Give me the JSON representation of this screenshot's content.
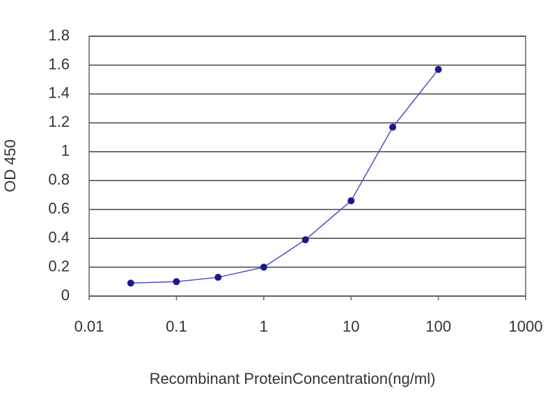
{
  "chart_data": {
    "type": "line",
    "x_label": "Recombinant ProteinConcentration(ng/ml)",
    "y_label": "OD 450",
    "x": [
      0.03,
      0.1,
      0.3,
      1,
      3,
      10,
      30,
      100
    ],
    "values": [
      0.09,
      0.1,
      0.13,
      0.2,
      0.39,
      0.66,
      1.17,
      1.57
    ],
    "color": "#1a1a8c",
    "line_color": "#4b4bc4",
    "xscale": "log",
    "xlim": [
      0.01,
      1000
    ],
    "xticks": [
      0.01,
      0.1,
      1,
      10,
      100,
      1000
    ],
    "ylim": [
      0,
      1.8
    ],
    "yticks": [
      0,
      0.2,
      0.4,
      0.6,
      0.8,
      1,
      1.2,
      1.4,
      1.6,
      1.8
    ],
    "grid": true
  }
}
